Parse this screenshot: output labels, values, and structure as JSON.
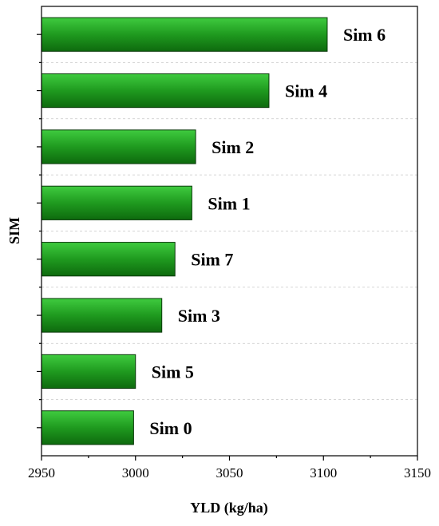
{
  "chart_data": {
    "type": "bar",
    "orientation": "horizontal",
    "categories": [
      "Sim 6",
      "Sim 4",
      "Sim 2",
      "Sim 1",
      "Sim 7",
      "Sim 3",
      "Sim 5",
      "Sim 0"
    ],
    "values": [
      3102,
      3071,
      3032,
      3030,
      3021,
      3014,
      3000,
      2999
    ],
    "xlabel": "YLD (kg/ha)",
    "ylabel": "SIM",
    "xlim": [
      2950,
      3150
    ],
    "xticks": [
      "2950",
      "3000",
      "3050",
      "3100",
      "3150"
    ],
    "grid": true,
    "bar_color": "#1f9a1f"
  }
}
